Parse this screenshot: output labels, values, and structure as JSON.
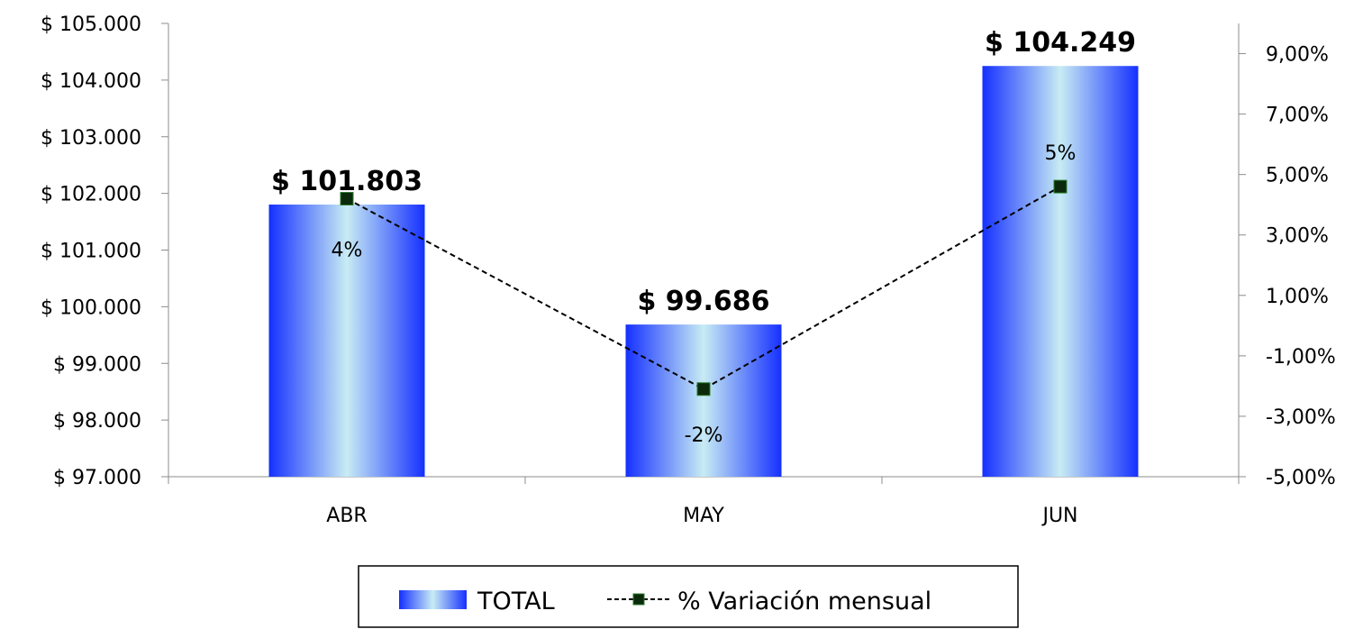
{
  "chart_data": {
    "type": "bar",
    "categories": [
      "ABR",
      "MAY",
      "JUN"
    ],
    "series": [
      {
        "name": "TOTAL",
        "type": "bar",
        "axis": "left",
        "values": [
          101803,
          99686,
          104249
        ],
        "labels": [
          "$ 101.803",
          "$ 99.686",
          "$ 104.249"
        ]
      },
      {
        "name": "% Variación mensual",
        "type": "line",
        "axis": "right",
        "line_style": "dashed",
        "values": [
          4.2,
          -2.1,
          4.6
        ],
        "labels": [
          "4%",
          "-2%",
          "5%"
        ]
      }
    ],
    "left_axis": {
      "ylim": [
        97000,
        105000
      ],
      "ticks": [
        97000,
        98000,
        99000,
        100000,
        101000,
        102000,
        103000,
        104000,
        105000
      ],
      "tick_labels": [
        "$ 97.000",
        "$ 98.000",
        "$ 99.000",
        "$ 100.000",
        "$ 101.000",
        "$ 102.000",
        "$ 103.000",
        "$ 104.000",
        "$ 105.000"
      ]
    },
    "right_axis": {
      "ylim": [
        -5,
        10
      ],
      "ticks": [
        -5,
        -3,
        -1,
        1,
        3,
        5,
        7,
        9
      ],
      "tick_labels": [
        "-5,00%",
        "-3,00%",
        "-1,00%",
        "1,00%",
        "3,00%",
        "5,00%",
        "7,00%",
        "9,00%"
      ]
    },
    "grid": false,
    "legend_position": "bottom",
    "colors": {
      "bar_edge": "#1530ff",
      "bar_center": "#c8ecf4",
      "line": "#000000",
      "marker": "#0b2a0b"
    }
  }
}
